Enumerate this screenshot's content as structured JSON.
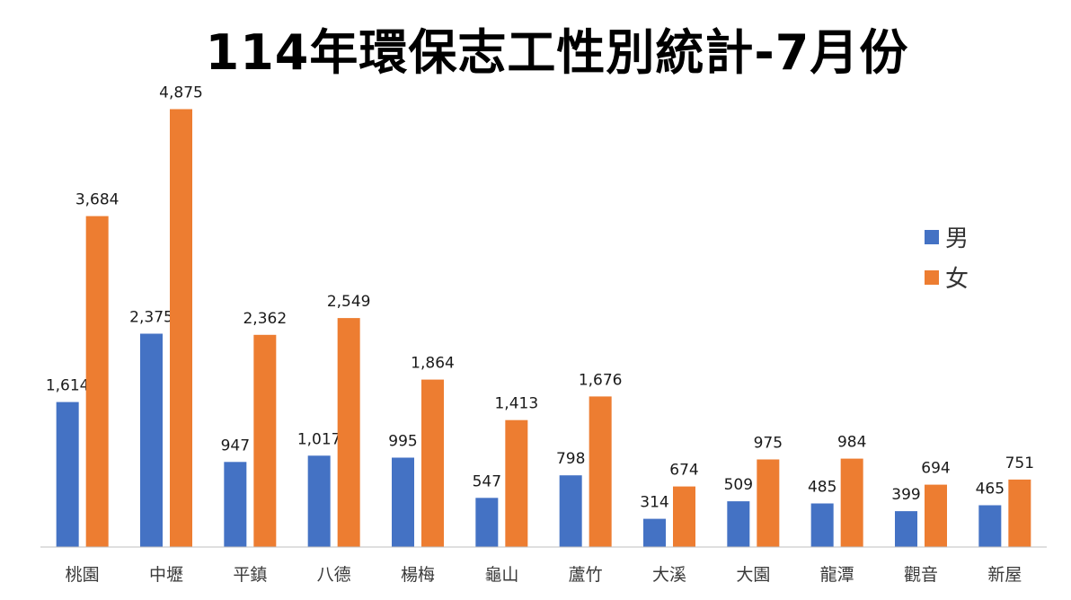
{
  "chart_data": {
    "type": "bar",
    "title": "114年環保志工性別統計-7月份",
    "categories": [
      "桃園",
      "中壢",
      "平鎮",
      "八德",
      "楊梅",
      "龜山",
      "蘆竹",
      "大溪",
      "大園",
      "龍潭",
      "觀音",
      "新屋"
    ],
    "series": [
      {
        "name": "男",
        "color": "#4472C4",
        "values": [
          1614,
          2375,
          947,
          1017,
          995,
          547,
          798,
          314,
          509,
          485,
          399,
          465
        ],
        "labels": [
          "1,614",
          "2,375",
          "947",
          "1,017",
          "995",
          "547",
          "798",
          "314",
          "509",
          "485",
          "399",
          "465"
        ]
      },
      {
        "name": "女",
        "color": "#ED7D31",
        "values": [
          3684,
          4875,
          2362,
          2549,
          1864,
          1413,
          1676,
          674,
          975,
          984,
          694,
          751
        ],
        "labels": [
          "3,684",
          "4,875",
          "2,362",
          "2,549",
          "1,864",
          "1,413",
          "1,676",
          "674",
          "975",
          "984",
          "694",
          "751"
        ]
      }
    ],
    "xlabel": "",
    "ylabel": "",
    "ylim": [
      0,
      5000
    ],
    "grid": false,
    "legend_position": "right"
  }
}
